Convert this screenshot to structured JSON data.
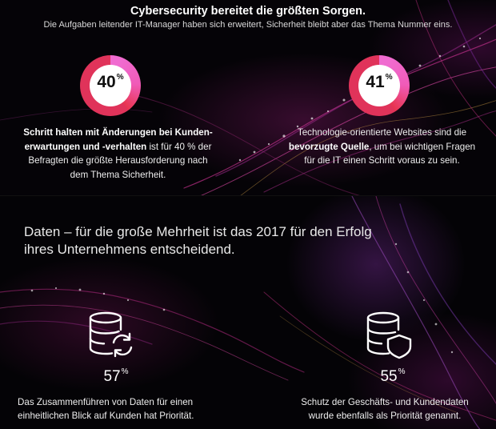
{
  "header": {
    "title": "Cybersecurity bereitet die größten Sorgen.",
    "subtitle": "Die Aufgaben leitender IT-Manager haben sich erweitert, Sicherheit bleibt aber das Thema Nummer eins."
  },
  "stat_left": {
    "value": "40",
    "unit": "%",
    "percent": 40,
    "desc_bold_1": "Schritt halten mit Änderungen bei Kunden-",
    "desc_bold_2": "erwartungen und -verhalten",
    "desc_rest_1": " ist für 40 % der",
    "desc_line_3": "Befragten die größte Herausforderung nach",
    "desc_line_4": "dem Thema Sicherheit."
  },
  "stat_right": {
    "value": "41",
    "unit": "%",
    "percent": 41,
    "desc_line_1": "Technologie-orientierte Websites sind die",
    "desc_bold": "bevorzugte Quelle",
    "desc_rest_2": ", um bei wichtigen Fragen",
    "desc_line_3": "für die IT einen Schritt voraus zu sein."
  },
  "headline": {
    "line_1": "Daten – für die große Mehrheit ist das 2017 für den Erfolg",
    "line_2": "ihres Unternehmens entscheidend."
  },
  "data_left": {
    "icon": "database-sync-icon",
    "value": "57",
    "unit": "%",
    "caption_1": "Das Zusammenführen von Daten für einen",
    "caption_2": "einheitlichen Blick auf Kunden hat Priorität."
  },
  "data_right": {
    "icon": "database-shield-icon",
    "value": "55",
    "unit": "%",
    "caption_1": "Schutz der Geschäfts- und Kundendaten",
    "caption_2": "wurde ebenfalls als Priorität genannt."
  },
  "colors": {
    "ring_start": "#f06bd0",
    "ring_end": "#e8344e",
    "ring_track": "#e0335a",
    "background": "#000000"
  }
}
